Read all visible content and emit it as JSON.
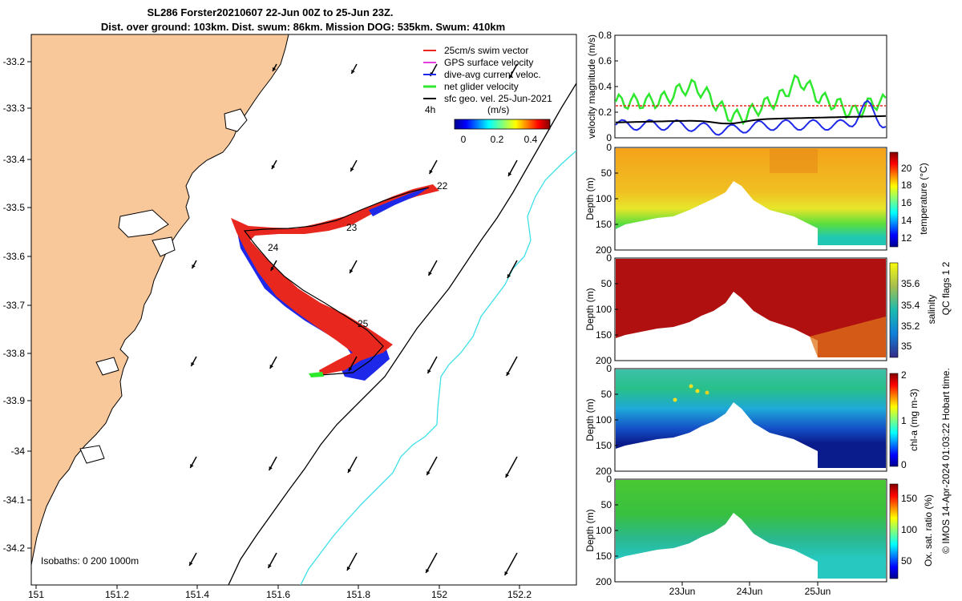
{
  "title": {
    "line1": "SL286 Forster20210607 22-Jun 00Z to 25-Jun 23Z.",
    "line2": "Dist. over ground: 103km. Dist. swum: 86km. Mission DOG: 535km. Swum: 410km"
  },
  "map": {
    "lon_ticks": [
      "151",
      "151.2",
      "151.4",
      "151.6",
      "151.8",
      "152",
      "152.2"
    ],
    "lat_ticks": [
      "-33.2",
      "-33.3",
      "-33.4",
      "-33.5",
      "-33.6",
      "-33.7",
      "-33.8",
      "-33.9",
      "-34",
      "-34.1",
      "-34.2"
    ],
    "day_labels": [
      "22",
      "23",
      "24",
      "25"
    ],
    "legend": [
      {
        "label": "25cm/s swim vector",
        "color": "#e8281e"
      },
      {
        "label": "GPS surface velocity",
        "color": "#e040e0"
      },
      {
        "label": "dive-avg current veloc.",
        "color": "#1e28e8"
      },
      {
        "label": "net glider velocity",
        "color": "#2ee82e"
      },
      {
        "label": "sfc geo. vel. 25-Jun-2021",
        "color": "#000000"
      }
    ],
    "time_marker": "4h",
    "colorbar": {
      "unit": "(m/s)",
      "ticks": [
        "0",
        "0.2",
        "0.4"
      ]
    },
    "isobaths": "Isobaths: 0   200  1000m",
    "colors": {
      "land": "#f8c89a",
      "coast": "#000000",
      "isobath_200": "#000000",
      "isobath_1000": "#3ee0e8"
    }
  },
  "chart_data": [
    {
      "type": "line",
      "title": "",
      "ylabel": "velocity magnitude (m/s)",
      "ylim": [
        0,
        0.8
      ],
      "yticks": [
        "0",
        "0.2",
        "0.4",
        "0.6",
        "0.8"
      ],
      "series": [
        {
          "name": "net glider velocity",
          "color": "#2ee82e"
        },
        {
          "name": "swim speed",
          "color": "#e8281e",
          "value": 0.25
        },
        {
          "name": "dive-avg current",
          "color": "#1e28e8"
        },
        {
          "name": "sfc geo. vel.",
          "color": "#000000"
        }
      ]
    },
    {
      "type": "heatmap",
      "ylabel": "Depth (m)",
      "yticks": [
        "0",
        "50",
        "100",
        "150",
        "200"
      ],
      "cbar_label": "temperature (°C)",
      "cbar_ticks": [
        "20",
        "18",
        "16",
        "14",
        "12"
      ]
    },
    {
      "type": "heatmap",
      "ylabel": "Depth (m)",
      "yticks": [
        "0",
        "50",
        "100",
        "150",
        "200"
      ],
      "cbar_label": "salinity",
      "cbar_ticks": [
        "35.6",
        "35.4",
        "35.2",
        "35"
      ]
    },
    {
      "type": "heatmap",
      "ylabel": "Depth (m)",
      "yticks": [
        "0",
        "50",
        "100",
        "150",
        "200"
      ],
      "cbar_label": "chl-a (mg m-3)",
      "cbar_ticks": [
        "2",
        "1",
        "0"
      ]
    },
    {
      "type": "heatmap",
      "ylabel": "Depth (m)",
      "yticks": [
        "0",
        "50",
        "100",
        "150",
        "200"
      ],
      "cbar_label": "Ox. sat. ratio (%)",
      "cbar_ticks": [
        "150",
        "100",
        "50"
      ]
    }
  ],
  "time_axis": {
    "ticks": [
      "23Jun",
      "24Jun",
      "25Jun"
    ]
  },
  "qc_note": "QC flags 1  2",
  "credit": "© IMOS 14-Apr-2024 01:03:22 Hobart time."
}
